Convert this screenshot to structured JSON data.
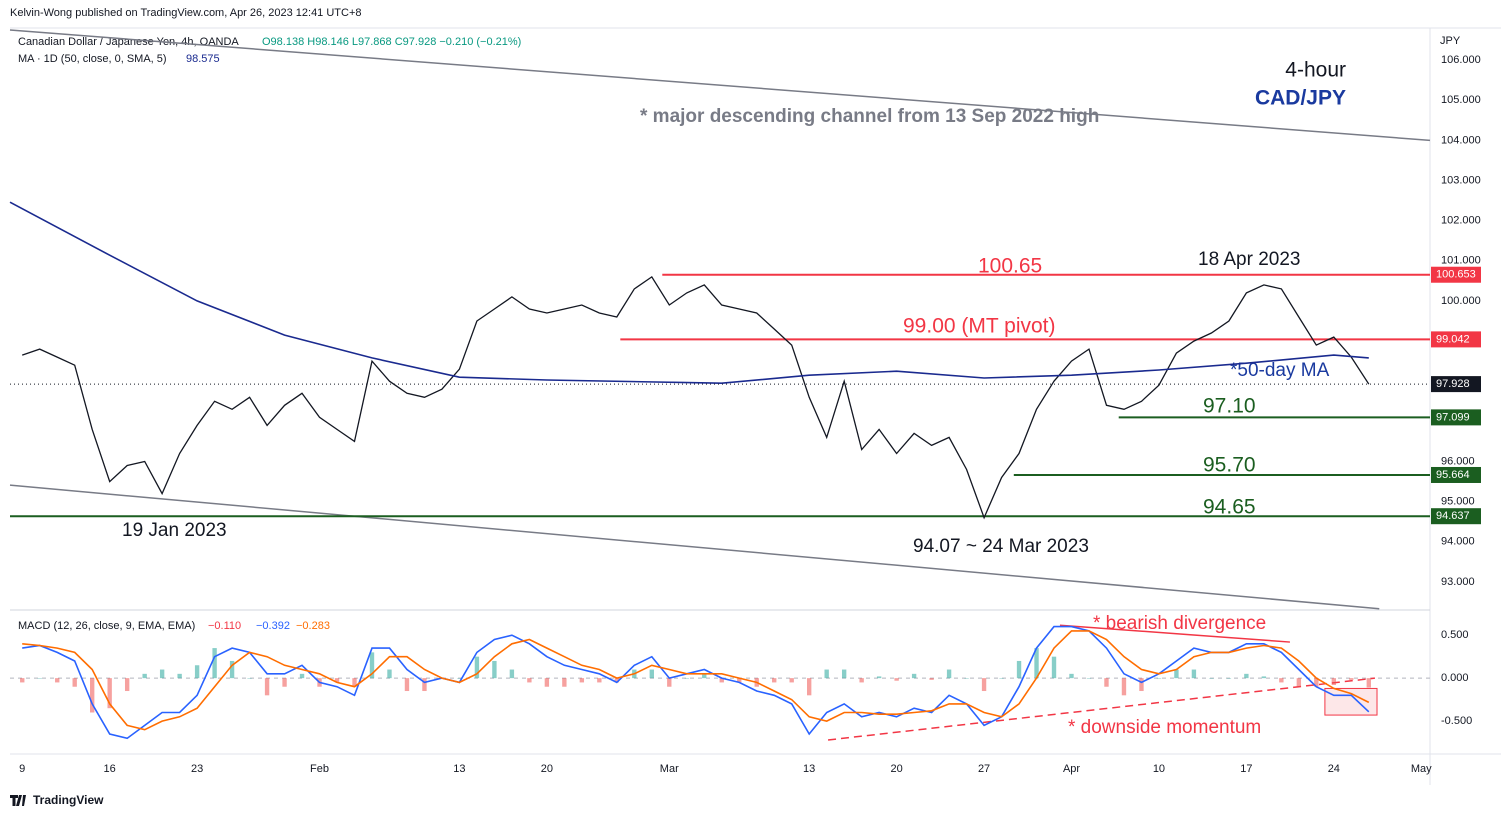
{
  "chart_data": [
    {
      "type": "line",
      "publisher": "Kelvin-Wong published on TradingView.com, Apr 26, 2023 12:41 UTC+8",
      "ohlc": "O98.138 H98.146 L97.868 C97.928 −0.210 (−0.21%)",
      "ma_value": 98.575,
      "axis_unit": "JPY",
      "last": 97.928,
      "xlim": [
        -0.7,
        80.5
      ],
      "ylim": [
        92.35,
        106.75
      ],
      "yticks": [
        {
          "value": 106,
          "label": "106.000"
        },
        {
          "value": 105,
          "label": "105.000"
        },
        {
          "value": 104,
          "label": "104.000"
        },
        {
          "value": 103,
          "label": "103.000"
        },
        {
          "value": 102,
          "label": "102.000"
        },
        {
          "value": 101,
          "label": "101.000"
        },
        {
          "value": 100,
          "label": "100.000"
        },
        {
          "value": 96,
          "label": "96.000"
        },
        {
          "value": 95,
          "label": "95.000"
        },
        {
          "value": 94,
          "label": "94.000"
        },
        {
          "value": 93,
          "label": "93.000"
        }
      ],
      "x": [
        0,
        1,
        2,
        3,
        4,
        5,
        6,
        7,
        8,
        9,
        10,
        11,
        12,
        13,
        14,
        15,
        16,
        17,
        18,
        19,
        20,
        21,
        22,
        23,
        24,
        25,
        26,
        27,
        28,
        29,
        30,
        31,
        32,
        33,
        34,
        35,
        36,
        37,
        38,
        39,
        40,
        41,
        42,
        43,
        44,
        45,
        46,
        47,
        48,
        49,
        50,
        51,
        52,
        53,
        54,
        55,
        56,
        57,
        58,
        59,
        60,
        61,
        62,
        63,
        64,
        65,
        66,
        67,
        68,
        69,
        70,
        71,
        72,
        73,
        74,
        75,
        76,
        77
      ],
      "series": [
        {
          "name": "Canadian Dollar / Japanese Yen, 4h, OANDA",
          "color": "#131722",
          "values": [
            98.65,
            98.8,
            98.6,
            98.4,
            96.8,
            95.5,
            95.9,
            96.0,
            95.2,
            96.2,
            96.9,
            97.5,
            97.3,
            97.6,
            96.9,
            97.4,
            97.7,
            97.1,
            96.8,
            96.5,
            98.5,
            98.0,
            97.7,
            97.6,
            97.8,
            98.3,
            99.5,
            99.8,
            100.1,
            99.8,
            99.7,
            99.8,
            99.9,
            99.7,
            99.6,
            100.3,
            100.6,
            99.9,
            100.2,
            100.4,
            99.9,
            99.8,
            99.7,
            99.3,
            98.9,
            97.6,
            96.6,
            98.0,
            96.3,
            96.8,
            96.2,
            96.7,
            96.4,
            96.6,
            95.8,
            94.6,
            95.6,
            96.2,
            97.3,
            98.0,
            98.5,
            98.8,
            97.4,
            97.3,
            97.5,
            97.9,
            98.7,
            99.0,
            99.2,
            99.5,
            100.2,
            100.4,
            100.3,
            99.6,
            98.9,
            99.1,
            98.6,
            97.928
          ]
        },
        {
          "name": "MA · 1D (50, close, 0, SMA, 5)",
          "color": "#1a2a8f",
          "x": [
            -0.7,
            5,
            10,
            15,
            20,
            25,
            30,
            40,
            45,
            50,
            55,
            60,
            65,
            70,
            75,
            77
          ],
          "values": [
            102.46,
            101.14,
            100.0,
            99.15,
            98.58,
            98.1,
            98.03,
            97.95,
            98.15,
            98.25,
            98.08,
            98.15,
            98.28,
            98.45,
            98.65,
            98.58
          ]
        }
      ],
      "levels": [
        {
          "value": 100.653,
          "label": "100.65",
          "start": 36.6,
          "color": "#f23645"
        },
        {
          "value": 99.042,
          "label": "99.00 (MT pivot)",
          "start": 34.2,
          "color": "#f23645"
        },
        {
          "value": 97.099,
          "label": "97.10",
          "start": 62.7,
          "color": "#1b5e20"
        },
        {
          "value": 95.664,
          "label": "95.70",
          "start": 56.7,
          "color": "#1b5e20"
        },
        {
          "value": 94.637,
          "label": "94.65",
          "start": -0.7,
          "color": "#1b5e20"
        }
      ],
      "trendlines": [
        {
          "x": [
            -0.7,
            80.5
          ],
          "values": [
            106.75,
            104.0
          ],
          "color": "#787b86"
        },
        {
          "x": [
            -0.7,
            77.6
          ],
          "values": [
            95.41,
            92.33
          ],
          "color": "#787b86"
        }
      ],
      "annotations": [
        "4-hour",
        "CAD/JPY",
        "* major descending channel from 13 Sep 2022 high",
        "18 Apr 2023",
        "19 Jan 2023",
        "94.07 ~ 24 Mar 2023",
        "*50-day MA"
      ]
    },
    {
      "type": "line",
      "title": "MACD (12, 26, close, 9, EMA, EMA)",
      "indicator_values": [
        "−0.110",
        "−0.392",
        "−0.283"
      ],
      "xlim": [
        -0.7,
        80.5
      ],
      "ylim": [
        -0.86,
        0.77
      ],
      "yticks": [
        {
          "value": 0.5,
          "label": "0.500"
        },
        {
          "value": 0,
          "label": "0.000"
        },
        {
          "value": -0.5,
          "label": "-0.500"
        }
      ],
      "xticks": [
        {
          "value": 0,
          "label": "9"
        },
        {
          "value": 5,
          "label": "16"
        },
        {
          "value": 10,
          "label": "23"
        },
        {
          "value": 17,
          "label": "Feb"
        },
        {
          "value": 25,
          "label": "13"
        },
        {
          "value": 30,
          "label": "20"
        },
        {
          "value": 37,
          "label": "Mar"
        },
        {
          "value": 45,
          "label": "13"
        },
        {
          "value": 50,
          "label": "20"
        },
        {
          "value": 55,
          "label": "27"
        },
        {
          "value": 60,
          "label": "Apr"
        },
        {
          "value": 65,
          "label": "10"
        },
        {
          "value": 70,
          "label": "17"
        },
        {
          "value": 75,
          "label": "24"
        },
        {
          "value": 80,
          "label": "May"
        }
      ],
      "x": [
        0,
        1,
        2,
        3,
        4,
        5,
        6,
        7,
        8,
        9,
        10,
        11,
        12,
        13,
        14,
        15,
        16,
        17,
        18,
        19,
        20,
        21,
        22,
        23,
        24,
        25,
        26,
        27,
        28,
        29,
        30,
        31,
        32,
        33,
        34,
        35,
        36,
        37,
        38,
        39,
        40,
        41,
        42,
        43,
        44,
        45,
        46,
        47,
        48,
        49,
        50,
        51,
        52,
        53,
        54,
        55,
        56,
        57,
        58,
        59,
        60,
        61,
        62,
        63,
        64,
        65,
        66,
        67,
        68,
        69,
        70,
        71,
        72,
        73,
        74,
        75,
        76,
        77
      ],
      "series": [
        {
          "style": "histogram",
          "up_color": "#26a69a",
          "down_color": "#ef5350",
          "values": [
            -0.05,
            0,
            -0.05,
            -0.1,
            -0.4,
            -0.35,
            -0.15,
            0.05,
            0.1,
            0.05,
            0.15,
            0.35,
            0.2,
            0,
            -0.2,
            -0.1,
            0.05,
            -0.1,
            -0.05,
            -0.1,
            0.3,
            0.1,
            -0.15,
            -0.15,
            0,
            0,
            0.25,
            0.2,
            0.1,
            -0.05,
            -0.1,
            -0.1,
            -0.05,
            -0.05,
            -0.05,
            0.1,
            0.1,
            -0.1,
            0,
            0.05,
            -0.05,
            -0.05,
            -0.1,
            -0.05,
            -0.05,
            -0.2,
            0.1,
            0.1,
            -0.05,
            0.02,
            -0.03,
            0.05,
            -0.02,
            0.1,
            0,
            -0.15,
            0,
            0.2,
            0.35,
            0.25,
            0.05,
            0,
            -0.1,
            -0.2,
            -0.15,
            0,
            0.1,
            0.1,
            0,
            0,
            0.05,
            0.02,
            -0.05,
            -0.1,
            -0.1,
            -0.08,
            -0.02,
            -0.11
          ]
        },
        {
          "style": "line",
          "color": "#2962ff",
          "values": [
            0.35,
            0.38,
            0.3,
            0.2,
            -0.3,
            -0.65,
            -0.7,
            -0.55,
            -0.4,
            -0.4,
            -0.2,
            0.25,
            0.35,
            0.3,
            0.05,
            0.05,
            0.15,
            -0.05,
            -0.1,
            -0.2,
            0.35,
            0.35,
            0.1,
            -0.05,
            0,
            -0.05,
            0.3,
            0.45,
            0.5,
            0.4,
            0.25,
            0.15,
            0.1,
            0.05,
            -0.05,
            0.15,
            0.25,
            0,
            0.05,
            0.1,
            0,
            -0.05,
            -0.15,
            -0.2,
            -0.3,
            -0.65,
            -0.4,
            -0.3,
            -0.45,
            -0.4,
            -0.45,
            -0.35,
            -0.4,
            -0.2,
            -0.3,
            -0.55,
            -0.45,
            -0.1,
            0.35,
            0.6,
            0.6,
            0.55,
            0.35,
            0.05,
            -0.05,
            0.05,
            0.2,
            0.35,
            0.3,
            0.3,
            0.4,
            0.4,
            0.3,
            0.1,
            -0.1,
            -0.2,
            -0.2,
            -0.392
          ]
        },
        {
          "style": "line",
          "color": "#ff6d00",
          "values": [
            0.4,
            0.38,
            0.35,
            0.3,
            0.1,
            -0.3,
            -0.55,
            -0.6,
            -0.5,
            -0.45,
            -0.35,
            -0.1,
            0.15,
            0.3,
            0.25,
            0.15,
            0.1,
            0.05,
            -0.05,
            -0.1,
            0.05,
            0.25,
            0.25,
            0.1,
            0,
            -0.05,
            0.05,
            0.25,
            0.4,
            0.45,
            0.35,
            0.25,
            0.15,
            0.1,
            0,
            0.05,
            0.15,
            0.1,
            0.05,
            0.05,
            0.05,
            0,
            -0.05,
            -0.15,
            -0.25,
            -0.45,
            -0.5,
            -0.4,
            -0.4,
            -0.42,
            -0.42,
            -0.4,
            -0.38,
            -0.3,
            -0.3,
            -0.4,
            -0.45,
            -0.3,
            0,
            0.35,
            0.55,
            0.55,
            0.45,
            0.25,
            0.1,
            0.05,
            0.1,
            0.25,
            0.3,
            0.3,
            0.35,
            0.38,
            0.35,
            0.2,
            0,
            -0.12,
            -0.18,
            -0.283
          ]
        }
      ],
      "trendlines": [
        {
          "x": [
            46.08,
            77.35
          ],
          "values": [
            -0.72,
            0
          ],
          "color": "#f23645",
          "dashed": true
        },
        {
          "x": [
            59.34,
            72.49
          ],
          "values": [
            0.616,
            0.42
          ],
          "color": "#f23645"
        }
      ],
      "boxes": [
        {
          "x": [
            74.49,
            77.47
          ],
          "values": [
            -0.12,
            -0.43
          ],
          "color": "#f23645"
        }
      ],
      "annotations": [
        "* bearish divergence",
        "* downside momentum"
      ]
    }
  ],
  "footer": "TradingView"
}
